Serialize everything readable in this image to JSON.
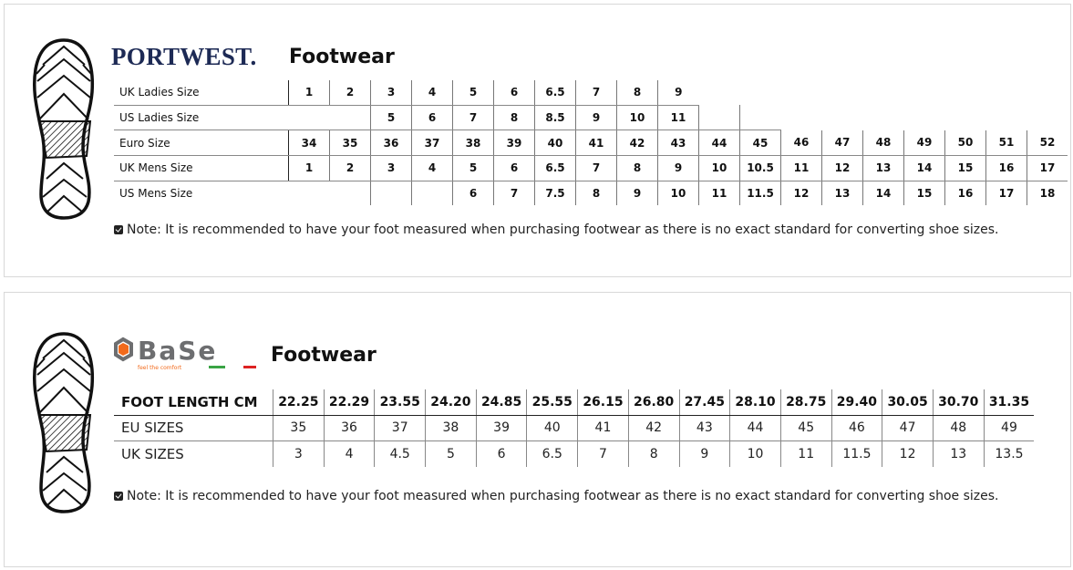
{
  "portwest": {
    "brand": "PORTWEST.",
    "title": "Footwear",
    "rows": [
      {
        "label": "UK Ladies Size",
        "values": [
          "1",
          "2",
          "3",
          "4",
          "5",
          "6",
          "6.5",
          "7",
          "8",
          "9"
        ]
      },
      {
        "label": "US Ladies Size",
        "values": [
          null,
          null,
          "5",
          "6",
          "7",
          "8",
          "8.5",
          "9",
          "10",
          "11",
          "",
          ""
        ]
      },
      {
        "label": "Euro Size",
        "values": [
          "34",
          "35",
          "36",
          "37",
          "38",
          "39",
          "40",
          "41",
          "42",
          "43",
          "44",
          "45",
          "46",
          "47",
          "48",
          "49",
          "50",
          "51",
          "52"
        ]
      },
      {
        "label": "UK Mens Size",
        "values": [
          "1",
          "2",
          "3",
          "4",
          "5",
          "6",
          "6.5",
          "7",
          "8",
          "9",
          "10",
          "10.5",
          "11",
          "12",
          "13",
          "14",
          "15",
          "16",
          "17"
        ]
      },
      {
        "label": "US Mens Size",
        "values": [
          null,
          null,
          "",
          "",
          "6",
          "7",
          "7.5",
          "8",
          "9",
          "10",
          "11",
          "11.5",
          "12",
          "13",
          "14",
          "15",
          "16",
          "17",
          "18"
        ]
      }
    ],
    "note": "Note: It is recommended to have your foot measured when purchasing footwear as there is no exact standard for converting shoe sizes."
  },
  "base": {
    "brand": "BASE",
    "tagline": "feel the comfort",
    "title": "Footwear",
    "rows": [
      {
        "label": "FOOT LENGTH CM",
        "values": [
          "22.25",
          "22.29",
          "23.55",
          "24.20",
          "24.85",
          "25.55",
          "26.15",
          "26.80",
          "27.45",
          "28.10",
          "28.75",
          "29.40",
          "30.05",
          "30.70",
          "31.35"
        ]
      },
      {
        "label": "EU SIZES",
        "values": [
          "35",
          "36",
          "37",
          "38",
          "39",
          "40",
          "41",
          "42",
          "43",
          "44",
          "45",
          "46",
          "47",
          "48",
          "49"
        ]
      },
      {
        "label": "UK SIZES",
        "values": [
          "3",
          "4",
          "4.5",
          "5",
          "6",
          "6.5",
          "7",
          "8",
          "9",
          "10",
          "11",
          "11.5",
          "12",
          "13",
          "13.5"
        ]
      }
    ],
    "note": "Note: It is recommended to have your foot measured when purchasing footwear as there is no exact standard for converting shoe sizes."
  },
  "colors": {
    "portwest_navy": "#1d2a55",
    "base_orange": "#f26a1b",
    "base_grey": "#6d6e70"
  }
}
